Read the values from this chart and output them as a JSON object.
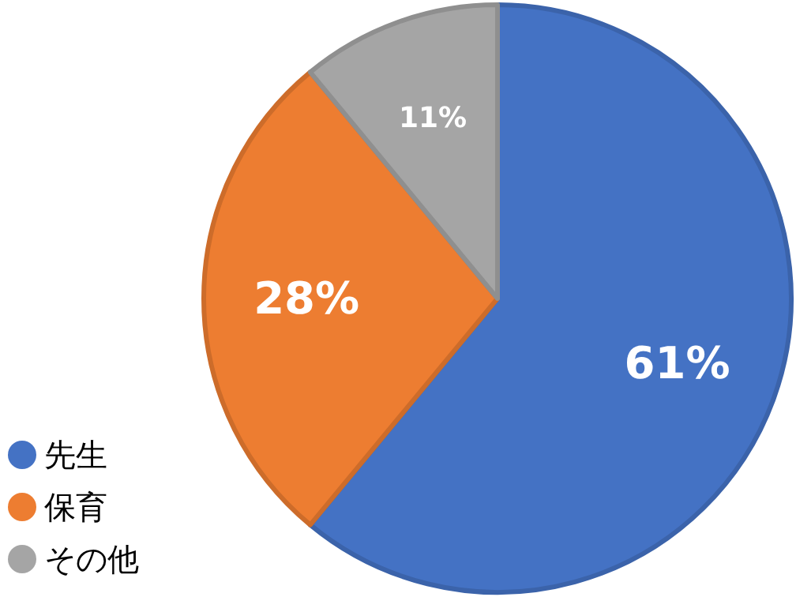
{
  "chart_data": {
    "type": "pie",
    "categories": [
      "先生",
      "保育",
      "その他"
    ],
    "values": [
      61,
      28,
      11
    ],
    "colors": [
      "#4472c4",
      "#ed7d31",
      "#a5a5a5"
    ],
    "value_labels": [
      "61%",
      "28%",
      "11%"
    ],
    "legend": "bottom left"
  }
}
